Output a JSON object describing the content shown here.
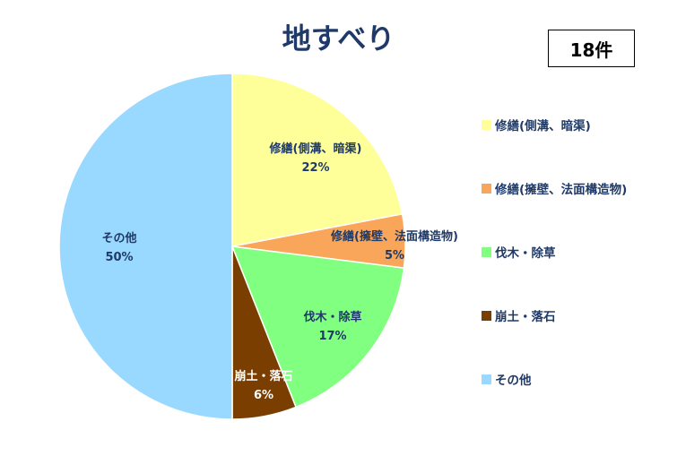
{
  "chart_data": {
    "type": "pie",
    "title": "地すべり",
    "badge": "18件",
    "categories": [
      "修繕(側溝、暗渠)",
      "修繕(擁壁、法面構造物)",
      "伐木・除草",
      "崩土・落石",
      "その他"
    ],
    "values": [
      22,
      5,
      17,
      6,
      50
    ],
    "labels": [
      "22%",
      "5%",
      "17%",
      "6%",
      "50%"
    ],
    "colors": [
      "#ffff99",
      "#f9a65a",
      "#80ff80",
      "#7a3e00",
      "#99d9ff"
    ],
    "label_colors": [
      "#1f3a68",
      "#1f3a68",
      "#1f3a68",
      "#ffffff",
      "#1f3a68"
    ],
    "legend_placement": "right"
  }
}
